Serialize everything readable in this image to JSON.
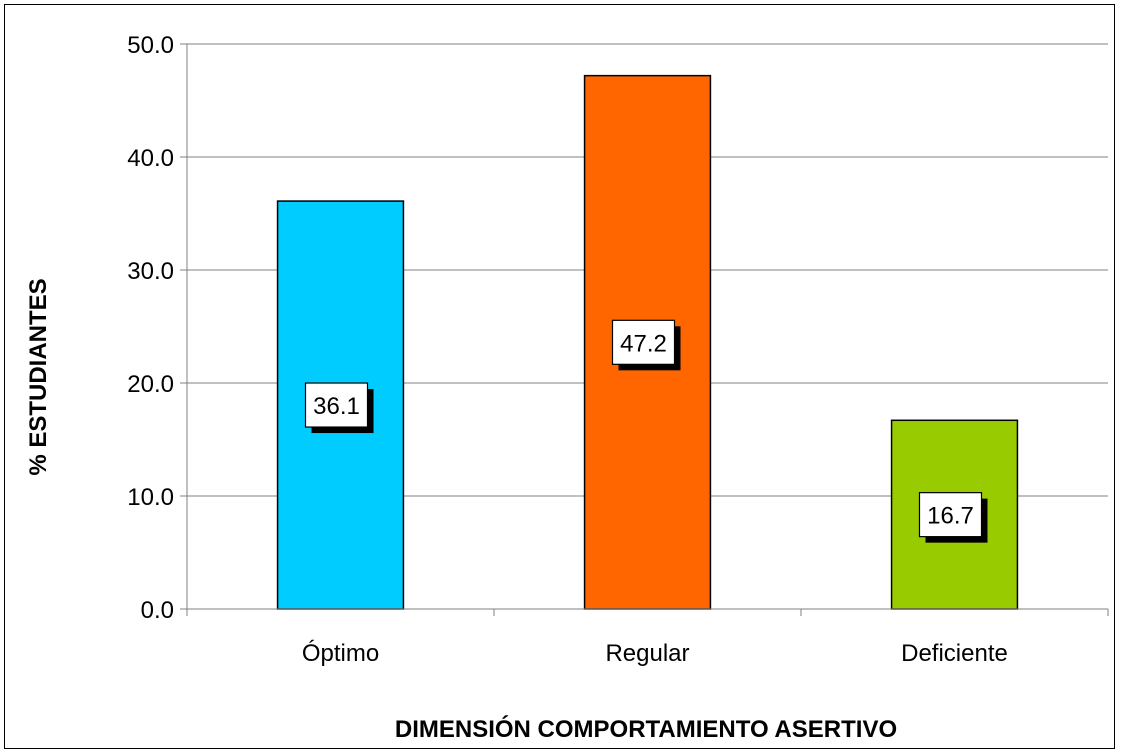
{
  "chart_data": {
    "type": "bar",
    "categories": [
      "Óptimo",
      "Regular",
      "Deficiente"
    ],
    "values": [
      36.1,
      47.2,
      16.7
    ],
    "data_labels": [
      "36.1",
      "47.2",
      "16.7"
    ],
    "bar_colors": [
      "#00ccff",
      "#ff6600",
      "#99cc00"
    ],
    "xlabel": "DIMENSIÓN COMPORTAMIENTO ASERTIVO",
    "ylabel": "% ESTUDIANTES",
    "ylim": [
      0,
      50
    ],
    "yticks": [
      "0.0",
      "10.0",
      "20.0",
      "30.0",
      "40.0",
      "50.0"
    ],
    "grid": true,
    "legend": "none"
  }
}
